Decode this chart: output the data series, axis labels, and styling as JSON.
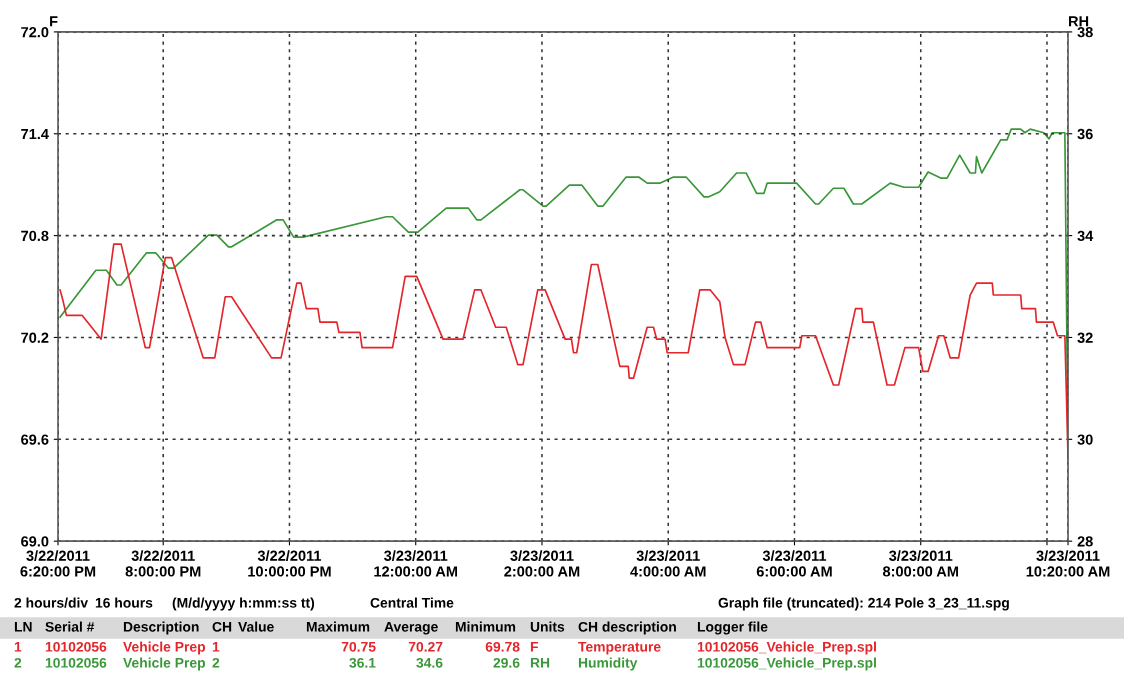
{
  "chart_data": {
    "type": "line",
    "ylabel": "F",
    "y2label": "RH",
    "xlim": [
      "2011-03-22T18:20",
      "2011-03-23T10:20"
    ],
    "xticks": [
      {
        "value": "2011-03-22T18:20",
        "label": "3/22/2011\n6:20:00 PM"
      },
      {
        "value": "2011-03-22T20:00",
        "label": "3/22/2011\n8:00:00 PM"
      },
      {
        "value": "2011-03-22T22:00",
        "label": "3/22/2011\n10:00:00 PM"
      },
      {
        "value": "2011-03-23T00:00",
        "label": "3/23/2011\n12:00:00 AM"
      },
      {
        "value": "2011-03-23T02:00",
        "label": "3/23/2011\n2:00:00 AM"
      },
      {
        "value": "2011-03-23T04:00",
        "label": "3/23/2011\n4:00:00 AM"
      },
      {
        "value": "2011-03-23T06:00",
        "label": "3/23/2011\n6:00:00 AM"
      },
      {
        "value": "2011-03-23T08:00",
        "label": "3/23/2011\n8:00:00 AM"
      },
      {
        "value": "2011-03-23T10:00",
        "label": null
      },
      {
        "value": "2011-03-23T10:20",
        "label": "3/23/2011\n10:20:00 AM"
      }
    ],
    "ylim": [
      69.0,
      72.0
    ],
    "yticks": [
      {
        "value": 69.0,
        "label": "69.0"
      },
      69.6,
      70.2,
      70.8,
      71.4,
      {
        "value": 72.0,
        "label": "72.0"
      }
    ],
    "y2lim": [
      28,
      38
    ],
    "y2ticks": [
      28,
      30,
      32,
      34,
      36,
      38
    ],
    "grid": true,
    "line_style": "solid",
    "marker": "none",
    "series": [
      {
        "color": "#e3262b",
        "x": [
          "2011-03-22T18:22",
          "2011-03-22T18:25",
          "2011-03-22T18:28",
          "2011-03-22T18:43",
          "2011-03-22T18:52",
          "2011-03-22T19:01",
          "2011-03-22T19:13",
          "2011-03-22T19:20",
          "2011-03-22T19:43",
          "2011-03-22T19:47",
          "2011-03-22T20:02",
          "2011-03-22T20:08",
          "2011-03-22T20:38",
          "2011-03-22T20:49",
          "2011-03-22T20:59",
          "2011-03-22T21:05",
          "2011-03-22T21:43",
          "2011-03-22T21:52",
          "2011-03-22T22:07",
          "2011-03-22T22:11",
          "2011-03-22T22:16",
          "2011-03-22T22:27",
          "2011-03-22T22:29",
          "2011-03-22T22:45",
          "2011-03-22T22:47",
          "2011-03-22T23:07",
          "2011-03-22T23:09",
          "2011-03-22T23:38",
          "2011-03-22T23:50",
          "2011-03-23T00:01",
          "2011-03-23T00:26",
          "2011-03-23T00:45",
          "2011-03-23T00:56",
          "2011-03-23T01:02",
          "2011-03-23T01:16",
          "2011-03-23T01:26",
          "2011-03-23T01:37",
          "2011-03-23T01:42",
          "2011-03-23T01:56",
          "2011-03-23T02:03",
          "2011-03-23T02:22",
          "2011-03-23T02:28",
          "2011-03-23T02:30",
          "2011-03-23T02:33",
          "2011-03-23T02:47",
          "2011-03-23T02:53",
          "2011-03-23T03:14",
          "2011-03-23T03:22",
          "2011-03-23T03:23",
          "2011-03-23T03:27",
          "2011-03-23T03:40",
          "2011-03-23T03:46",
          "2011-03-23T03:49",
          "2011-03-23T03:57",
          "2011-03-23T03:59",
          "2011-03-23T04:19",
          "2011-03-23T04:30",
          "2011-03-23T04:40",
          "2011-03-23T04:49",
          "2011-03-23T04:54",
          "2011-03-23T05:02",
          "2011-03-23T05:13",
          "2011-03-23T05:23",
          "2011-03-23T05:28",
          "2011-03-23T05:34",
          "2011-03-23T06:05",
          "2011-03-23T06:07",
          "2011-03-23T06:20",
          "2011-03-23T06:37",
          "2011-03-23T06:42",
          "2011-03-23T06:58",
          "2011-03-23T07:04",
          "2011-03-23T07:05",
          "2011-03-23T07:15",
          "2011-03-23T07:28",
          "2011-03-23T07:35",
          "2011-03-23T07:45",
          "2011-03-23T07:58",
          "2011-03-23T08:02",
          "2011-03-23T08:07",
          "2011-03-23T08:17",
          "2011-03-23T08:22",
          "2011-03-23T08:28",
          "2011-03-23T08:36",
          "2011-03-23T08:47",
          "2011-03-23T08:53",
          "2011-03-23T09:08",
          "2011-03-23T09:09",
          "2011-03-23T09:35",
          "2011-03-23T09:36",
          "2011-03-23T09:49",
          "2011-03-23T09:50",
          "2011-03-23T10:06",
          "2011-03-23T10:10",
          "2011-03-23T10:17",
          "2011-03-23T10:20"
        ],
        "values": [
          70.48,
          70.41,
          70.33,
          70.33,
          70.26,
          70.19,
          70.75,
          70.75,
          70.14,
          70.14,
          70.67,
          70.67,
          70.08,
          70.08,
          70.44,
          70.44,
          70.08,
          70.08,
          70.52,
          70.52,
          70.37,
          70.37,
          70.29,
          70.29,
          70.23,
          70.23,
          70.14,
          70.14,
          70.56,
          70.56,
          70.19,
          70.19,
          70.48,
          70.48,
          70.26,
          70.26,
          70.04,
          70.04,
          70.48,
          70.48,
          70.19,
          70.19,
          70.11,
          70.11,
          70.63,
          70.63,
          70.03,
          70.03,
          69.96,
          69.96,
          70.26,
          70.26,
          70.19,
          70.19,
          70.11,
          70.11,
          70.48,
          70.48,
          70.41,
          70.2,
          70.04,
          70.04,
          70.29,
          70.29,
          70.14,
          70.14,
          70.21,
          70.21,
          69.92,
          69.92,
          70.37,
          70.37,
          70.29,
          70.29,
          69.92,
          69.92,
          70.14,
          70.14,
          70.0,
          70.0,
          70.21,
          70.21,
          70.08,
          70.08,
          70.45,
          70.52,
          70.52,
          70.45,
          70.45,
          70.37,
          70.37,
          70.29,
          70.29,
          70.21,
          70.21,
          69.5
        ]
      },
      {
        "color": "#3a973a",
        "axis": "y2",
        "x": [
          "2011-03-22T18:22",
          "2011-03-22T18:56",
          "2011-03-22T19:06",
          "2011-03-22T19:16",
          "2011-03-22T19:20",
          "2011-03-22T19:44",
          "2011-03-22T19:53",
          "2011-03-22T20:05",
          "2011-03-22T20:10",
          "2011-03-22T20:43",
          "2011-03-22T20:51",
          "2011-03-22T21:02",
          "2011-03-22T21:05",
          "2011-03-22T21:48",
          "2011-03-22T21:54",
          "2011-03-22T22:04",
          "2011-03-22T22:13",
          "2011-03-22T23:32",
          "2011-03-22T23:38",
          "2011-03-22T23:53",
          "2011-03-23T00:02",
          "2011-03-23T00:29",
          "2011-03-23T00:50",
          "2011-03-23T00:58",
          "2011-03-23T01:02",
          "2011-03-23T01:39",
          "2011-03-23T01:42",
          "2011-03-23T02:01",
          "2011-03-23T02:04",
          "2011-03-23T02:26",
          "2011-03-23T02:38",
          "2011-03-23T02:53",
          "2011-03-23T02:58",
          "2011-03-23T03:20",
          "2011-03-23T03:32",
          "2011-03-23T03:40",
          "2011-03-23T03:52",
          "2011-03-23T04:05",
          "2011-03-23T04:17",
          "2011-03-23T04:34",
          "2011-03-23T04:38",
          "2011-03-23T04:49",
          "2011-03-23T05:05",
          "2011-03-23T05:14",
          "2011-03-23T05:24",
          "2011-03-23T05:31",
          "2011-03-23T05:34",
          "2011-03-23T06:02",
          "2011-03-23T06:20",
          "2011-03-23T06:23",
          "2011-03-23T06:37",
          "2011-03-23T06:47",
          "2011-03-23T06:56",
          "2011-03-23T07:04",
          "2011-03-23T07:31",
          "2011-03-23T07:44",
          "2011-03-23T07:58",
          "2011-03-23T08:07",
          "2011-03-23T08:19",
          "2011-03-23T08:25",
          "2011-03-23T08:37",
          "2011-03-23T08:47",
          "2011-03-23T08:52",
          "2011-03-23T08:53",
          "2011-03-23T08:58",
          "2011-03-23T09:16",
          "2011-03-23T09:22",
          "2011-03-23T09:26",
          "2011-03-23T09:35",
          "2011-03-23T09:39",
          "2011-03-23T09:44",
          "2011-03-23T09:57",
          "2011-03-23T10:02",
          "2011-03-23T10:05",
          "2011-03-23T10:17",
          "2011-03-23T10:20"
        ],
        "values": [
          32.4,
          33.32,
          33.32,
          33.03,
          33.03,
          33.66,
          33.66,
          33.36,
          33.36,
          34.01,
          34.01,
          33.78,
          33.78,
          34.31,
          34.31,
          33.97,
          33.97,
          34.37,
          34.37,
          34.07,
          34.07,
          34.54,
          34.54,
          34.31,
          34.31,
          34.9,
          34.9,
          34.58,
          34.58,
          34.99,
          34.99,
          34.58,
          34.58,
          35.15,
          35.15,
          35.03,
          35.03,
          35.15,
          35.15,
          34.76,
          34.76,
          34.86,
          35.23,
          35.23,
          34.83,
          34.83,
          35.03,
          35.03,
          34.62,
          34.62,
          34.93,
          34.93,
          34.62,
          34.62,
          35.03,
          34.95,
          34.95,
          35.25,
          35.13,
          35.13,
          35.58,
          35.23,
          35.23,
          35.55,
          35.23,
          35.88,
          35.88,
          36.09,
          36.09,
          36.02,
          36.09,
          36.02,
          35.9,
          36.02,
          36.02,
          29.6
        ]
      }
    ],
    "annotations": [
      "2 hours/div",
      "16 hours",
      "(M/d/yyyy h:mm:ss tt)",
      "Central Time",
      "Graph file (truncated): 214 Pole 3_23_11.spg",
      "LN",
      "Serial #",
      "Description",
      "CH",
      "Value",
      "Maximum",
      "Average",
      "Minimum",
      "Units",
      "CH description",
      "Logger file",
      "1",
      "10102056",
      "Vehicle Prep",
      "1",
      "70.75",
      "70.27",
      "69.78",
      "F",
      "Temperature",
      "10102056_Vehicle_Prep.spl",
      "2",
      "10102056",
      "Vehicle Prep",
      "2",
      "36.1",
      "34.6",
      "29.6",
      "RH",
      "Humidity",
      "10102056_Vehicle_Prep.spl"
    ]
  }
}
